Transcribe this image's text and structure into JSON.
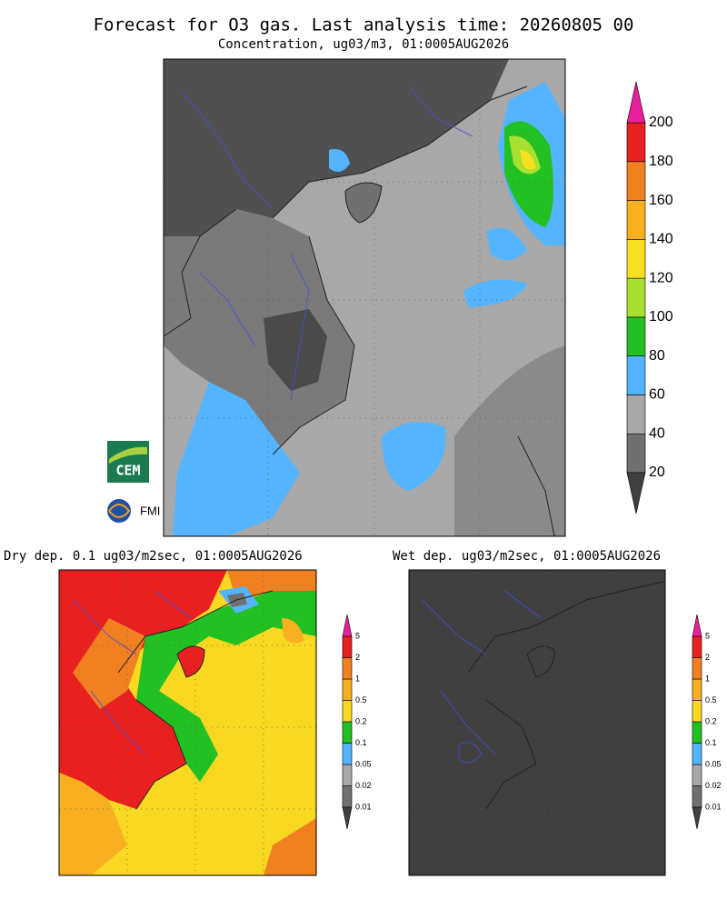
{
  "title": "Forecast for O3 gas. Last analysis time: 20260805 00",
  "main": {
    "subtitle": "Concentration, ug03/m3, 01:0005AUG2026",
    "colorbar": {
      "labels": [
        20,
        40,
        60,
        80,
        100,
        120,
        140,
        160,
        180,
        200
      ],
      "colors": [
        "#707070",
        "#a8a8a8",
        "#55b4ff",
        "#22c022",
        "#a8e030",
        "#f8e020",
        "#f8b020",
        "#f08020",
        "#e82020"
      ],
      "under_color": "#404040",
      "over_color": "#e8209a"
    }
  },
  "dry": {
    "title": "Dry dep. 0.1 ug03/m2sec, 01:0005AUG2026",
    "colorbar": {
      "labels": [
        0.01,
        0.02,
        0.05,
        0.1,
        0.2,
        0.5,
        1,
        2,
        5
      ],
      "colors": [
        "#707070",
        "#a8a8a8",
        "#55b4ff",
        "#22c022",
        "#f8d820",
        "#f8b020",
        "#f08020",
        "#e82020"
      ],
      "under_color": "#404040",
      "over_color": "#e8209a"
    }
  },
  "wet": {
    "title": "Wet dep. ug03/m2sec, 01:0005AUG2026",
    "colorbar": {
      "labels": [
        0.01,
        0.02,
        0.05,
        0.1,
        0.2,
        0.5,
        1,
        2,
        5
      ],
      "colors": [
        "#707070",
        "#a8a8a8",
        "#55b4ff",
        "#22c022",
        "#f8d820",
        "#f8b020",
        "#f08020",
        "#e82020"
      ],
      "under_color": "#404040",
      "over_color": "#e8209a"
    }
  },
  "logos": {
    "cem": "CEM",
    "fmi": "FMI"
  }
}
